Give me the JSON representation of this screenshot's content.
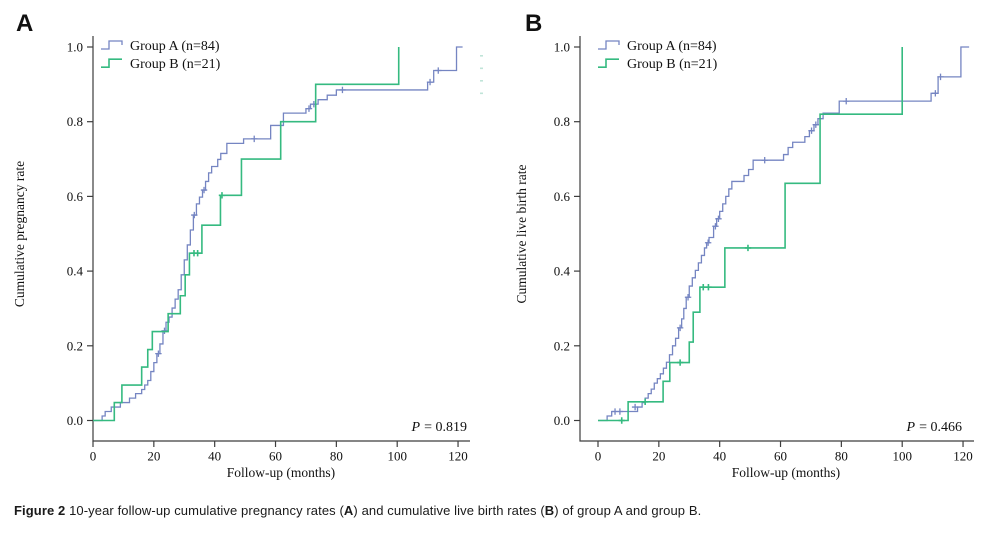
{
  "figure": {
    "caption_segments": [
      {
        "text": "Figure 2 ",
        "bold": true
      },
      {
        "text": "10-year follow-up cumulative pregnancy rates (",
        "bold": false
      },
      {
        "text": "A",
        "bold": true
      },
      {
        "text": ") and cumulative live birth rates (",
        "bold": false
      },
      {
        "text": "B",
        "bold": true
      },
      {
        "text": ") of group A and group B.",
        "bold": false
      }
    ]
  },
  "colors": {
    "group_a": "#7585c2",
    "group_b": "#35ba80",
    "axis": "#3d3d3d",
    "text": "#111111"
  },
  "chart_data": [
    {
      "type": "line",
      "subtype": "kaplan-meier-step",
      "panel_label": "A",
      "ylabel": "Cumulative pregnancy rate",
      "xlabel": "Follow-up (months)",
      "p_label": "P",
      "p_value": "= 0.819",
      "xlim": [
        0,
        124
      ],
      "ylim": [
        0.0,
        1.0
      ],
      "x_ticks": [
        "0",
        "20",
        "40",
        "60",
        "80",
        "100",
        "120"
      ],
      "y_ticks": [
        "0.0",
        "0.2",
        "0.4",
        "0.6",
        "0.8",
        "1.0"
      ],
      "grid": false,
      "legend_position": "top-left",
      "series": [
        {
          "name": "Group A (n=84)",
          "color_key": "group_a",
          "steps": [
            [
              0,
              0
            ],
            [
              3,
              0.012
            ],
            [
              4,
              0.024
            ],
            [
              6,
              0.036
            ],
            [
              9,
              0.048
            ],
            [
              12,
              0.06
            ],
            [
              14,
              0.072
            ],
            [
              16,
              0.083
            ],
            [
              17,
              0.095
            ],
            [
              18,
              0.107
            ],
            [
              19,
              0.131
            ],
            [
              20,
              0.155
            ],
            [
              21,
              0.179
            ],
            [
              22,
              0.205
            ],
            [
              23,
              0.24
            ],
            [
              24,
              0.263
            ],
            [
              25,
              0.277
            ],
            [
              26,
              0.301
            ],
            [
              27,
              0.325
            ],
            [
              28,
              0.35
            ],
            [
              29,
              0.39
            ],
            [
              30,
              0.43
            ],
            [
              31,
              0.47
            ],
            [
              32,
              0.51
            ],
            [
              33,
              0.55
            ],
            [
              34,
              0.58
            ],
            [
              35,
              0.598
            ],
            [
              36,
              0.617
            ],
            [
              37,
              0.64
            ],
            [
              38,
              0.663
            ],
            [
              39,
              0.68
            ],
            [
              41,
              0.699
            ],
            [
              42,
              0.715
            ],
            [
              44,
              0.742
            ],
            [
              49.5,
              0.754
            ],
            [
              58.4,
              0.79
            ],
            [
              62.6,
              0.823
            ],
            [
              70,
              0.835
            ],
            [
              71.5,
              0.847
            ],
            [
              74,
              0.859
            ],
            [
              77,
              0.871
            ],
            [
              80,
              0.885
            ],
            [
              110,
              0.906
            ],
            [
              112,
              0.937
            ],
            [
              119.5,
              1.0
            ]
          ],
          "extend_to": 121.5,
          "censors": [
            [
              21.5,
              0.179
            ],
            [
              23.5,
              0.24
            ],
            [
              33.3,
              0.55
            ],
            [
              36.5,
              0.617
            ],
            [
              53,
              0.754
            ],
            [
              71,
              0.835
            ],
            [
              72.6,
              0.847
            ],
            [
              82,
              0.885
            ],
            [
              110.8,
              0.906
            ],
            [
              113.5,
              0.937
            ]
          ]
        },
        {
          "name": "Group B (n=21)",
          "color_key": "group_b",
          "steps": [
            [
              0,
              0
            ],
            [
              7,
              0.048
            ],
            [
              9.5,
              0.095
            ],
            [
              16,
              0.143
            ],
            [
              18,
              0.19
            ],
            [
              19.5,
              0.238
            ],
            [
              24.7,
              0.286
            ],
            [
              28.7,
              0.334
            ],
            [
              30.3,
              0.39
            ],
            [
              31.7,
              0.448
            ],
            [
              35.8,
              0.523
            ],
            [
              41.9,
              0.603
            ],
            [
              48.8,
              0.7
            ],
            [
              61.7,
              0.8
            ],
            [
              73.2,
              0.9
            ],
            [
              100.5,
              1.0
            ]
          ],
          "extend_to": null,
          "censors": [
            [
              33.2,
              0.448
            ],
            [
              34.4,
              0.448
            ],
            [
              42.4,
              0.603
            ]
          ]
        }
      ]
    },
    {
      "type": "line",
      "subtype": "kaplan-meier-step",
      "panel_label": "B",
      "ylabel": "Cumulative live birth rate",
      "xlabel": "Follow-up (months)",
      "p_label": "P",
      "p_value": "= 0.466",
      "xlim": [
        0,
        124
      ],
      "ylim": [
        0.0,
        1.0
      ],
      "x_ticks": [
        "0",
        "20",
        "40",
        "60",
        "80",
        "100",
        "120"
      ],
      "y_ticks": [
        "0.0",
        "0.2",
        "0.4",
        "0.6",
        "0.8",
        "1.0"
      ],
      "grid": false,
      "legend_position": "top-left",
      "series": [
        {
          "name": "Group A (n=84)",
          "color_key": "group_a",
          "steps": [
            [
              0,
              0
            ],
            [
              3,
              0.012
            ],
            [
              4.5,
              0.024
            ],
            [
              13,
              0.036
            ],
            [
              14.5,
              0.048
            ],
            [
              15.5,
              0.06
            ],
            [
              16.5,
              0.072
            ],
            [
              17.5,
              0.084
            ],
            [
              18.5,
              0.1
            ],
            [
              19.5,
              0.112
            ],
            [
              20.5,
              0.125
            ],
            [
              21.5,
              0.14
            ],
            [
              22.5,
              0.156
            ],
            [
              23.5,
              0.176
            ],
            [
              24.5,
              0.2
            ],
            [
              25.5,
              0.22
            ],
            [
              26.5,
              0.248
            ],
            [
              27.5,
              0.272
            ],
            [
              28.2,
              0.3
            ],
            [
              29,
              0.33
            ],
            [
              30,
              0.36
            ],
            [
              31,
              0.382
            ],
            [
              32,
              0.402
            ],
            [
              33,
              0.422
            ],
            [
              34,
              0.442
            ],
            [
              35,
              0.462
            ],
            [
              35.7,
              0.476
            ],
            [
              36.5,
              0.49
            ],
            [
              38,
              0.52
            ],
            [
              39,
              0.54
            ],
            [
              40,
              0.56
            ],
            [
              41,
              0.58
            ],
            [
              42,
              0.6
            ],
            [
              43,
              0.62
            ],
            [
              44,
              0.64
            ],
            [
              48,
              0.656
            ],
            [
              49.5,
              0.672
            ],
            [
              51,
              0.697
            ],
            [
              61,
              0.712
            ],
            [
              62.5,
              0.731
            ],
            [
              64,
              0.745
            ],
            [
              68,
              0.76
            ],
            [
              69.5,
              0.776
            ],
            [
              71,
              0.792
            ],
            [
              72.3,
              0.808
            ],
            [
              74,
              0.823
            ],
            [
              79.3,
              0.855
            ],
            [
              109.5,
              0.876
            ],
            [
              111.8,
              0.92
            ],
            [
              119.3,
              1.0
            ]
          ],
          "extend_to": 122,
          "censors": [
            [
              5.6,
              0.024
            ],
            [
              7.2,
              0.024
            ],
            [
              12.2,
              0.036
            ],
            [
              27,
              0.248
            ],
            [
              29.6,
              0.33
            ],
            [
              36.2,
              0.476
            ],
            [
              38.6,
              0.52
            ],
            [
              39.6,
              0.54
            ],
            [
              54.8,
              0.697
            ],
            [
              70.2,
              0.776
            ],
            [
              71.6,
              0.792
            ],
            [
              81.6,
              0.855
            ],
            [
              110.9,
              0.876
            ],
            [
              112.6,
              0.92
            ]
          ]
        },
        {
          "name": "Group B (n=21)",
          "color_key": "group_b",
          "steps": [
            [
              0,
              0
            ],
            [
              9.9,
              0.05
            ],
            [
              21.4,
              0.105
            ],
            [
              23.6,
              0.155
            ],
            [
              30,
              0.21
            ],
            [
              31.3,
              0.29
            ],
            [
              33.5,
              0.357
            ],
            [
              41.7,
              0.462
            ],
            [
              61.5,
              0.635
            ],
            [
              73,
              0.82
            ],
            [
              100,
              1.0
            ]
          ],
          "extend_to": null,
          "censors": [
            [
              7.8,
              0
            ],
            [
              15.5,
              0.05
            ],
            [
              27,
              0.155
            ],
            [
              34.6,
              0.357
            ],
            [
              36.3,
              0.357
            ],
            [
              49.3,
              0.462
            ]
          ]
        }
      ]
    }
  ]
}
